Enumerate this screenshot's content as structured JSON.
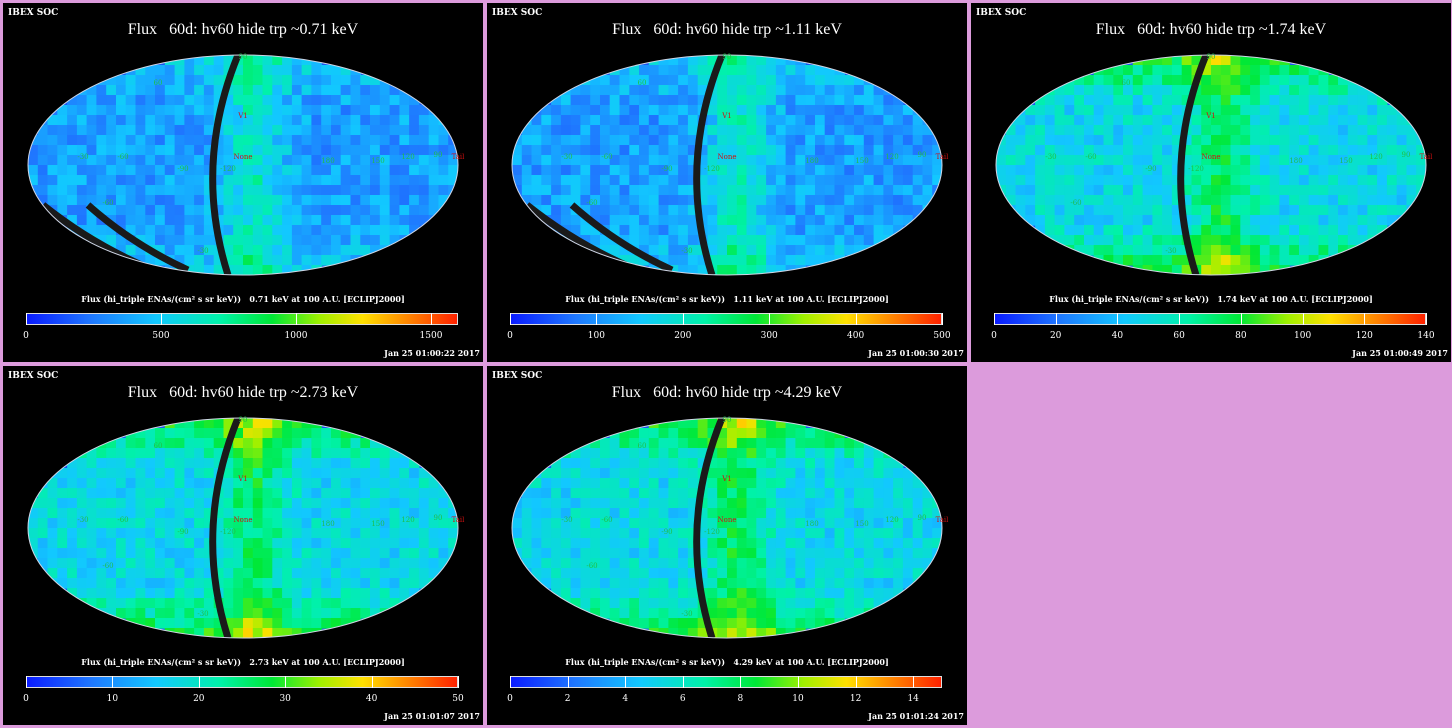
{
  "chart_data": [
    {
      "type": "heatmap",
      "header": "IBEX SOC",
      "title": "Flux   60d: hv60 hide trp ~0.71 keV",
      "colorbar_label": "Flux (hi_triple ENAs/(cm² s sr keV))   0.71 keV at 100 A.U. [ECLIPJ2000]",
      "colorbar_ticks": [
        "0",
        "500",
        "1000",
        "1500"
      ],
      "colorbar_range": [
        0,
        1600
      ],
      "timestamp": "Jan 25 01:00:22 2017",
      "map_labels": [
        "V1",
        "None",
        "Tail",
        "-90",
        "-120",
        "180",
        "150",
        "120",
        "90",
        "-60",
        "-30",
        "-60",
        "60",
        "-30",
        "90"
      ]
    },
    {
      "type": "heatmap",
      "header": "IBEX SOC",
      "title": "Flux   60d: hv60 hide trp ~1.11 keV",
      "colorbar_label": "Flux (hi_triple ENAs/(cm² s sr keV))   1.11 keV at 100 A.U. [ECLIPJ2000]",
      "colorbar_ticks": [
        "0",
        "100",
        "200",
        "300",
        "400",
        "500"
      ],
      "colorbar_range": [
        0,
        500
      ],
      "timestamp": "Jan 25 01:00:30 2017",
      "map_labels": [
        "V1",
        "None",
        "Tail",
        "-90",
        "-120",
        "180",
        "150",
        "120",
        "90",
        "-60",
        "-30",
        "-60",
        "60",
        "-30",
        "90"
      ]
    },
    {
      "type": "heatmap",
      "header": "IBEX SOC",
      "title": "Flux   60d: hv60 hide trp ~1.74 keV",
      "colorbar_label": "Flux (hi_triple ENAs/(cm² s sr keV))   1.74 keV at 100 A.U. [ECLIPJ2000]",
      "colorbar_ticks": [
        "0",
        "20",
        "40",
        "60",
        "80",
        "100",
        "120",
        "140"
      ],
      "colorbar_range": [
        0,
        140
      ],
      "timestamp": "Jan 25 01:00:49 2017",
      "map_labels": [
        "V1",
        "None",
        "Tail",
        "-90",
        "-120",
        "180",
        "150",
        "120",
        "90",
        "-60",
        "-30",
        "-60",
        "60",
        "-30",
        "90"
      ]
    },
    {
      "type": "heatmap",
      "header": "IBEX SOC",
      "title": "Flux   60d: hv60 hide trp ~2.73 keV",
      "colorbar_label": "Flux (hi_triple ENAs/(cm² s sr keV))   2.73 keV at 100 A.U. [ECLIPJ2000]",
      "colorbar_ticks": [
        "0",
        "10",
        "20",
        "30",
        "40",
        "50"
      ],
      "colorbar_range": [
        0,
        50
      ],
      "timestamp": "Jan 25 01:01:07 2017",
      "map_labels": [
        "V1",
        "None",
        "Tail",
        "-90",
        "-120",
        "180",
        "150",
        "120",
        "90",
        "-60",
        "-30",
        "-60",
        "60",
        "-30",
        "90"
      ]
    },
    {
      "type": "heatmap",
      "header": "IBEX SOC",
      "title": "Flux   60d: hv60 hide trp ~4.29 keV",
      "colorbar_label": "Flux (hi_triple ENAs/(cm² s sr keV))   4.29 keV at 100 A.U. [ECLIPJ2000]",
      "colorbar_ticks": [
        "0",
        "2",
        "4",
        "6",
        "8",
        "10",
        "12",
        "14"
      ],
      "colorbar_range": [
        0,
        15
      ],
      "timestamp": "Jan 25 01:01:24 2017",
      "map_labels": [
        "V1",
        "None",
        "Tail",
        "-90",
        "-120",
        "180",
        "150",
        "120",
        "90",
        "-60",
        "-30",
        "-60",
        "60",
        "-30",
        "90"
      ]
    }
  ],
  "colors": {
    "background": "#dc9bdc",
    "panel": "#000000",
    "base_sky": "#1c58f0",
    "grid_label": "#1fbf4a",
    "marker_label": "#d01010"
  }
}
